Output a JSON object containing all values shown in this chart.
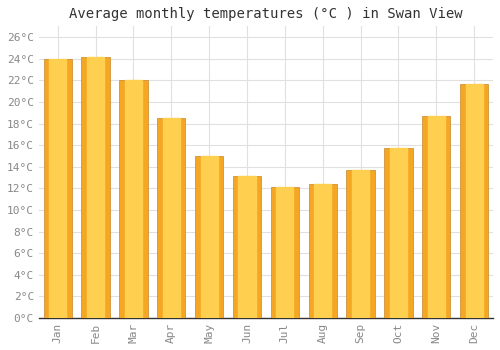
{
  "title": "Average monthly temperatures (°C ) in Swan View",
  "months": [
    "Jan",
    "Feb",
    "Mar",
    "Apr",
    "May",
    "Jun",
    "Jul",
    "Aug",
    "Sep",
    "Oct",
    "Nov",
    "Dec"
  ],
  "values": [
    24.0,
    24.2,
    22.0,
    18.5,
    15.0,
    13.1,
    12.1,
    12.4,
    13.7,
    15.7,
    18.7,
    21.7
  ],
  "bar_color_outer": "#F5A623",
  "bar_color_inner": "#FFD050",
  "bar_edge_color": "#C8882A",
  "ylim": [
    0,
    27
  ],
  "yticks": [
    0,
    2,
    4,
    6,
    8,
    10,
    12,
    14,
    16,
    18,
    20,
    22,
    24,
    26
  ],
  "ytick_labels": [
    "0°C",
    "2°C",
    "4°C",
    "6°C",
    "8°C",
    "10°C",
    "12°C",
    "14°C",
    "16°C",
    "18°C",
    "20°C",
    "22°C",
    "24°C",
    "26°C"
  ],
  "title_fontsize": 10,
  "tick_fontsize": 8,
  "background_color": "#ffffff",
  "grid_color": "#e0e0e0",
  "bar_width": 0.75
}
